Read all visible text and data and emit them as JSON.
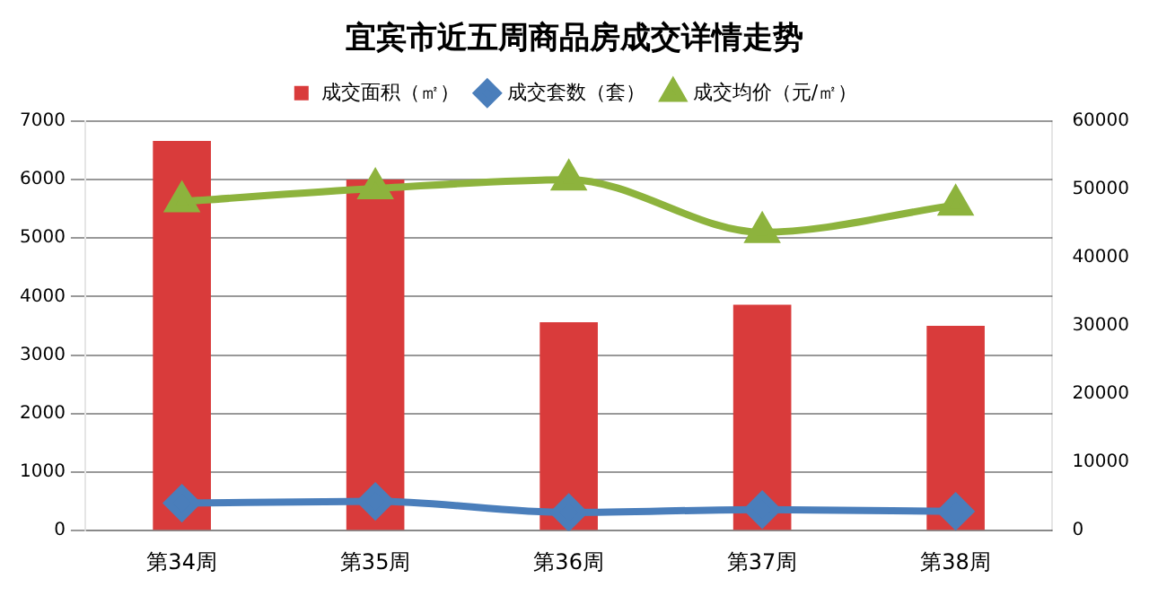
{
  "chart_data": {
    "type": "bar",
    "title": "宜宾市近五周商品房成交详情走势",
    "categories": [
      "第34周",
      "第35周",
      "第36周",
      "第37周",
      "第38周"
    ],
    "series": [
      {
        "name": "成交面积（㎡）",
        "color": "#d93b3b",
        "values": [
          6660,
          6000,
          3560,
          3860,
          3500
        ]
      },
      {
        "name": "成交套数（套）",
        "type": "line",
        "color": "#4a7ebb",
        "marker": "diamond",
        "values": [
          470,
          500,
          310,
          360,
          330
        ]
      },
      {
        "name": "成交均价（元/㎡）",
        "type": "line",
        "color": "#8db33d",
        "marker": "triangle",
        "axis": "y2",
        "values": [
          48200,
          50100,
          51400,
          43700,
          47700
        ]
      }
    ],
    "ylim": [
      0,
      7000
    ],
    "yticks": [
      0,
      1000,
      2000,
      3000,
      4000,
      5000,
      6000,
      7000
    ],
    "y2lim": [
      0,
      60000
    ],
    "y2ticks": [
      0,
      10000,
      20000,
      30000,
      40000,
      50000,
      60000
    ],
    "grid": "y",
    "legend": "top"
  }
}
